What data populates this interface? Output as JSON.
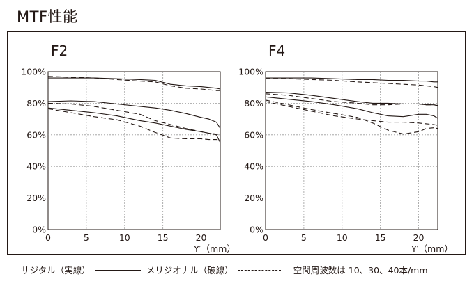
{
  "title": "MTF性能",
  "legend": {
    "sagittal": "サジタル（実線）",
    "meridional": "メリジオナル（破線）",
    "note": "空間周波数は 10、30、40本/mm"
  },
  "chart_data": [
    {
      "type": "line",
      "title": "F2",
      "xlabel": "Y′（mm）",
      "ylabel": "",
      "xlim": [
        0,
        22.5
      ],
      "ylim": [
        0,
        100
      ],
      "x_ticks": [
        "0",
        "5",
        "10",
        "15",
        "20"
      ],
      "y_ticks": [
        "0%",
        "20%",
        "40%",
        "60%",
        "80%",
        "100%"
      ],
      "grid": true,
      "series": [
        {
          "style": "solid",
          "x": [
            0,
            3,
            6,
            9,
            12,
            14,
            16,
            18,
            20,
            21,
            22,
            22.5
          ],
          "y": [
            96,
            96,
            96,
            95.5,
            95,
            94.5,
            92,
            91,
            90.5,
            90,
            89.5,
            89
          ]
        },
        {
          "style": "dashed",
          "x": [
            0,
            3,
            6,
            9,
            12,
            14,
            16,
            18,
            20,
            21,
            22,
            22.5
          ],
          "y": [
            97,
            96.5,
            96,
            95,
            94,
            93.5,
            91,
            89.5,
            89,
            88.5,
            88,
            88
          ]
        },
        {
          "style": "solid",
          "x": [
            0,
            3,
            6,
            9,
            12,
            14,
            16,
            18,
            20,
            21,
            22,
            22.5
          ],
          "y": [
            81,
            81.5,
            81,
            79.5,
            78,
            77,
            75.5,
            73.5,
            71,
            70,
            68,
            64
          ]
        },
        {
          "style": "dashed",
          "x": [
            0,
            3,
            6,
            9,
            12,
            14,
            16,
            18,
            20,
            21,
            22,
            22.5
          ],
          "y": [
            80,
            79.5,
            78,
            75.5,
            73,
            69,
            66.5,
            64,
            62,
            61,
            60.5,
            60
          ]
        },
        {
          "style": "solid",
          "x": [
            0,
            3,
            6,
            9,
            12,
            14,
            16,
            18,
            20,
            21,
            22,
            22.5
          ],
          "y": [
            77,
            75.5,
            74,
            72,
            69,
            67.5,
            65.5,
            63.5,
            62,
            61,
            60,
            55
          ]
        },
        {
          "style": "dashed",
          "x": [
            0,
            3,
            6,
            9,
            12,
            14,
            16,
            18,
            20,
            21,
            22,
            22.5
          ],
          "y": [
            76.5,
            74,
            71.5,
            69.5,
            65.5,
            61.5,
            58,
            57.5,
            57.5,
            57,
            57,
            56.5
          ]
        }
      ]
    },
    {
      "type": "line",
      "title": "F4",
      "xlabel": "Y′（mm）",
      "ylabel": "",
      "xlim": [
        0,
        22.5
      ],
      "ylim": [
        0,
        100
      ],
      "x_ticks": [
        "0",
        "5",
        "10",
        "15",
        "20"
      ],
      "y_ticks": [
        "0%",
        "20%",
        "40%",
        "60%",
        "80%",
        "100%"
      ],
      "grid": true,
      "series": [
        {
          "style": "solid",
          "x": [
            0,
            3,
            6,
            9,
            12,
            14,
            16,
            18,
            20,
            21,
            22,
            22.5
          ],
          "y": [
            96,
            96,
            96,
            95.5,
            95,
            95,
            94.5,
            94.5,
            94,
            94,
            93.5,
            93.5
          ]
        },
        {
          "style": "dashed",
          "x": [
            0,
            3,
            6,
            9,
            12,
            14,
            16,
            18,
            20,
            21,
            22,
            22.5
          ],
          "y": [
            95.5,
            95.5,
            95,
            94.5,
            93.5,
            93,
            92.5,
            92,
            91.5,
            91,
            90.5,
            90
          ]
        },
        {
          "style": "solid",
          "x": [
            0,
            3,
            6,
            9,
            12,
            14,
            16,
            18,
            20,
            21,
            22,
            22.5
          ],
          "y": [
            87,
            86.5,
            85,
            83,
            81,
            80,
            80,
            79.5,
            79.5,
            79,
            79,
            78.5
          ]
        },
        {
          "style": "dashed",
          "x": [
            0,
            3,
            6,
            9,
            12,
            14,
            16,
            18,
            20,
            21,
            22,
            22.5
          ],
          "y": [
            86,
            85,
            83,
            81,
            80,
            79,
            79,
            79.5,
            79.5,
            79,
            79,
            78.5
          ]
        },
        {
          "style": "solid",
          "x": [
            0,
            3,
            6,
            9,
            12,
            14,
            16,
            18,
            20,
            21,
            22,
            22.5
          ],
          "y": [
            84,
            82.5,
            81,
            79,
            76.5,
            74,
            72,
            71.5,
            73,
            73,
            72,
            70.5
          ]
        },
        {
          "style": "dashed",
          "x": [
            0,
            3,
            6,
            9,
            12,
            14,
            16,
            18,
            20,
            21,
            22,
            22.5
          ],
          "y": [
            82,
            79,
            76,
            73.5,
            71,
            67.5,
            63,
            60.5,
            62,
            64,
            64.5,
            64
          ]
        },
        {
          "style": "dashed",
          "x": [
            0,
            3,
            6,
            9,
            12,
            14,
            16,
            18,
            20,
            21,
            22,
            22.5
          ],
          "y": [
            81,
            78,
            75,
            72,
            70,
            69,
            68,
            68,
            67.5,
            67,
            66.5,
            66
          ]
        }
      ]
    }
  ]
}
